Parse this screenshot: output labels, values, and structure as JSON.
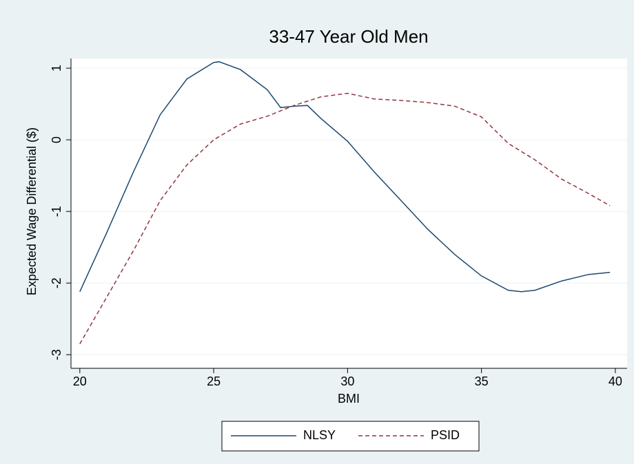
{
  "chart_data": {
    "type": "line",
    "title": "33-47 Year Old Men",
    "x_label": "BMI",
    "y_label": "Expected Wage Differential ($)",
    "xlim": [
      19.67,
      40.44
    ],
    "xticks": [
      20,
      25,
      30,
      35,
      40
    ],
    "ylim": [
      -3.19,
      1.135
    ],
    "yticks": [
      -3,
      -2,
      -1,
      0,
      1
    ],
    "grid": true,
    "legend_position": "bottom",
    "series": [
      {
        "name": "NLSY",
        "color": "#1a476f",
        "dashed": false,
        "x": [
          20,
          21,
          22,
          23,
          24,
          25,
          25.2,
          26,
          27,
          27.5,
          28,
          28.5,
          29,
          30,
          31,
          32,
          33,
          34,
          35,
          36,
          36.5,
          37,
          38,
          39,
          39.8
        ],
        "values": [
          -2.12,
          -1.3,
          -0.45,
          0.35,
          0.85,
          1.08,
          1.09,
          0.98,
          0.7,
          0.45,
          0.47,
          0.48,
          0.3,
          -0.02,
          -0.45,
          -0.85,
          -1.25,
          -1.6,
          -1.9,
          -2.1,
          -2.12,
          -2.1,
          -1.97,
          -1.88,
          -1.85
        ]
      },
      {
        "name": "PSID",
        "color": "#90353b",
        "dashed": true,
        "x": [
          20,
          21,
          22,
          23,
          24,
          25,
          26,
          27,
          28,
          29,
          30,
          31,
          32,
          33,
          34,
          35,
          36,
          37,
          38,
          39,
          39.8
        ],
        "values": [
          -2.85,
          -2.2,
          -1.55,
          -0.85,
          -0.35,
          0.0,
          0.22,
          0.33,
          0.48,
          0.6,
          0.65,
          0.57,
          0.55,
          0.52,
          0.47,
          0.32,
          -0.05,
          -0.28,
          -0.55,
          -0.75,
          -0.92
        ]
      }
    ]
  }
}
